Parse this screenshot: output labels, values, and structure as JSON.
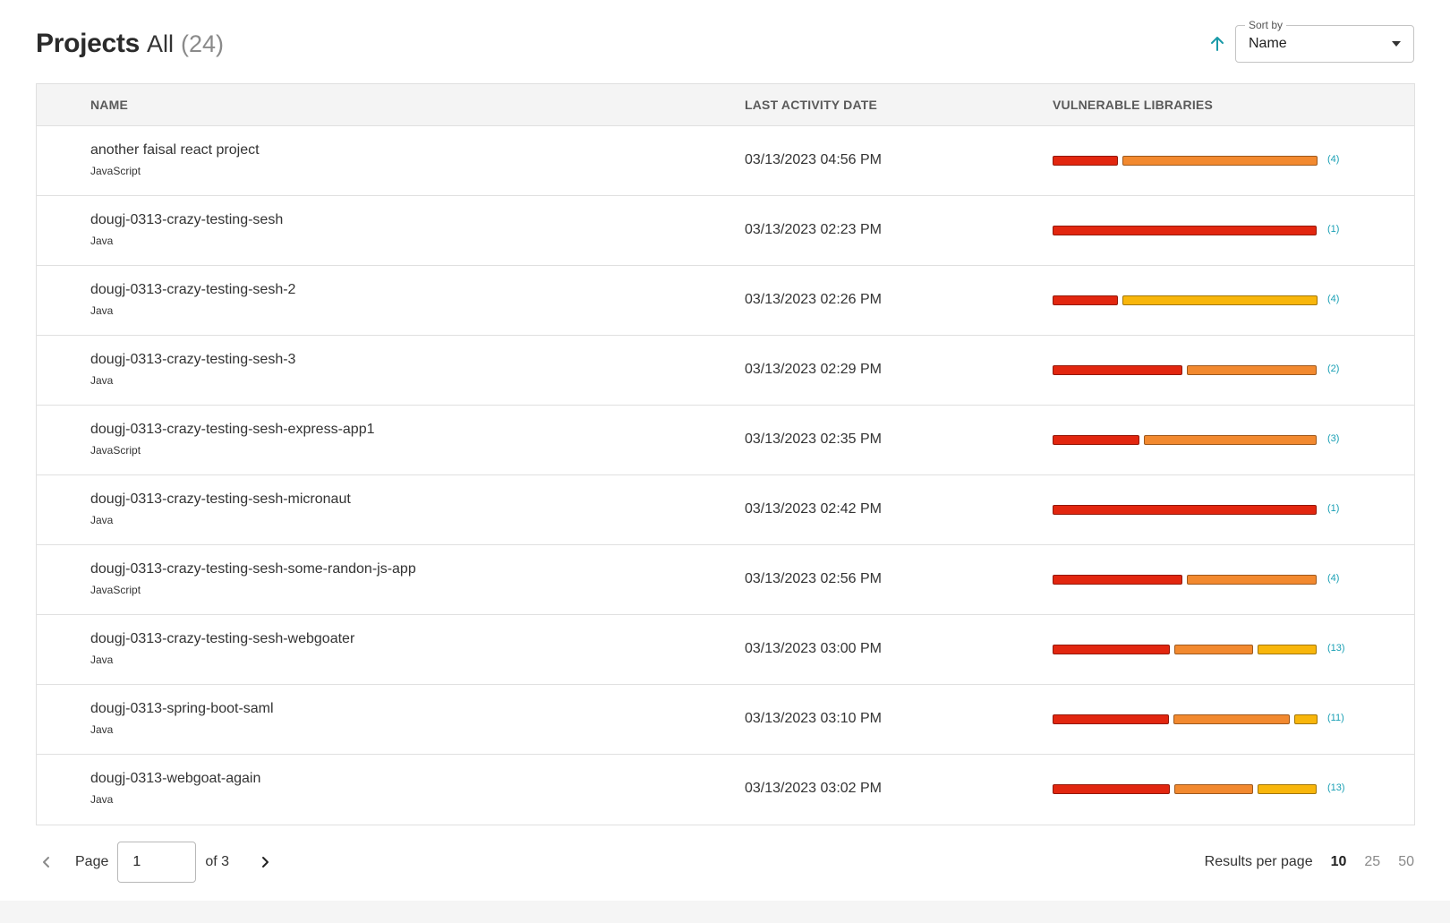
{
  "header": {
    "title": "Projects",
    "filter_label": "All",
    "filter_count": "(24)",
    "sort_legend": "Sort by",
    "sort_value": "Name",
    "sort_direction_icon": "arrow-up-icon"
  },
  "table": {
    "columns": {
      "name": "NAME",
      "last_activity": "LAST ACTIVITY DATE",
      "vulnerable": "VULNERABLE LIBRARIES"
    },
    "rows": [
      {
        "name": "another faisal react project",
        "language": "JavaScript",
        "date": "03/13/2023 04:56 PM",
        "bars": [
          {
            "color": "#e2260f",
            "fraction": 0.25
          },
          {
            "color": "#f2892f",
            "fraction": 0.75
          }
        ],
        "count": "(4)"
      },
      {
        "name": "dougj-0313-crazy-testing-sesh",
        "language": "Java",
        "date": "03/13/2023 02:23 PM",
        "bars": [
          {
            "color": "#e2260f",
            "fraction": 1.0
          }
        ],
        "count": "(1)"
      },
      {
        "name": "dougj-0313-crazy-testing-sesh-2",
        "language": "Java",
        "date": "03/13/2023 02:26 PM",
        "bars": [
          {
            "color": "#e2260f",
            "fraction": 0.25
          },
          {
            "color": "#f8b60b",
            "fraction": 0.75
          }
        ],
        "count": "(4)"
      },
      {
        "name": "dougj-0313-crazy-testing-sesh-3",
        "language": "Java",
        "date": "03/13/2023 02:29 PM",
        "bars": [
          {
            "color": "#e2260f",
            "fraction": 0.5
          },
          {
            "color": "#f2892f",
            "fraction": 0.5
          }
        ],
        "count": "(2)"
      },
      {
        "name": "dougj-0313-crazy-testing-sesh-express-app1",
        "language": "JavaScript",
        "date": "03/13/2023 02:35 PM",
        "bars": [
          {
            "color": "#e2260f",
            "fraction": 0.333
          },
          {
            "color": "#f2892f",
            "fraction": 0.667
          }
        ],
        "count": "(3)"
      },
      {
        "name": "dougj-0313-crazy-testing-sesh-micronaut",
        "language": "Java",
        "date": "03/13/2023 02:42 PM",
        "bars": [
          {
            "color": "#e2260f",
            "fraction": 1.0
          }
        ],
        "count": "(1)"
      },
      {
        "name": "dougj-0313-crazy-testing-sesh-some-randon-js-app",
        "language": "JavaScript",
        "date": "03/13/2023 02:56 PM",
        "bars": [
          {
            "color": "#e2260f",
            "fraction": 0.5
          },
          {
            "color": "#f2892f",
            "fraction": 0.5
          }
        ],
        "count": "(4)"
      },
      {
        "name": "dougj-0313-crazy-testing-sesh-webgoater",
        "language": "Java",
        "date": "03/13/2023 03:00 PM",
        "bars": [
          {
            "color": "#e2260f",
            "fraction": 0.46
          },
          {
            "color": "#f2892f",
            "fraction": 0.31
          },
          {
            "color": "#f8b60b",
            "fraction": 0.23
          }
        ],
        "count": "(13)"
      },
      {
        "name": "dougj-0313-spring-boot-saml",
        "language": "Java",
        "date": "03/13/2023 03:10 PM",
        "bars": [
          {
            "color": "#e2260f",
            "fraction": 0.455
          },
          {
            "color": "#f2892f",
            "fraction": 0.455
          },
          {
            "color": "#f8b60b",
            "fraction": 0.09
          }
        ],
        "count": "(11)"
      },
      {
        "name": "dougj-0313-webgoat-again",
        "language": "Java",
        "date": "03/13/2023 03:02 PM",
        "bars": [
          {
            "color": "#e2260f",
            "fraction": 0.46
          },
          {
            "color": "#f2892f",
            "fraction": 0.31
          },
          {
            "color": "#f8b60b",
            "fraction": 0.23
          }
        ],
        "count": "(13)"
      }
    ]
  },
  "pagination": {
    "prev_icon": "chevron-left-icon",
    "next_icon": "chevron-right-icon",
    "page_label": "Page",
    "page_value": "1",
    "of_label": "of 3",
    "rpp_label": "Results per page",
    "rpp_options": [
      "10",
      "25",
      "50"
    ],
    "rpp_selected": "10"
  },
  "colors": {
    "accent": "#1a9aa8",
    "critical": "#e2260f",
    "high": "#f2892f",
    "medium": "#f8b60b",
    "count_text": "#1aa0b5"
  }
}
